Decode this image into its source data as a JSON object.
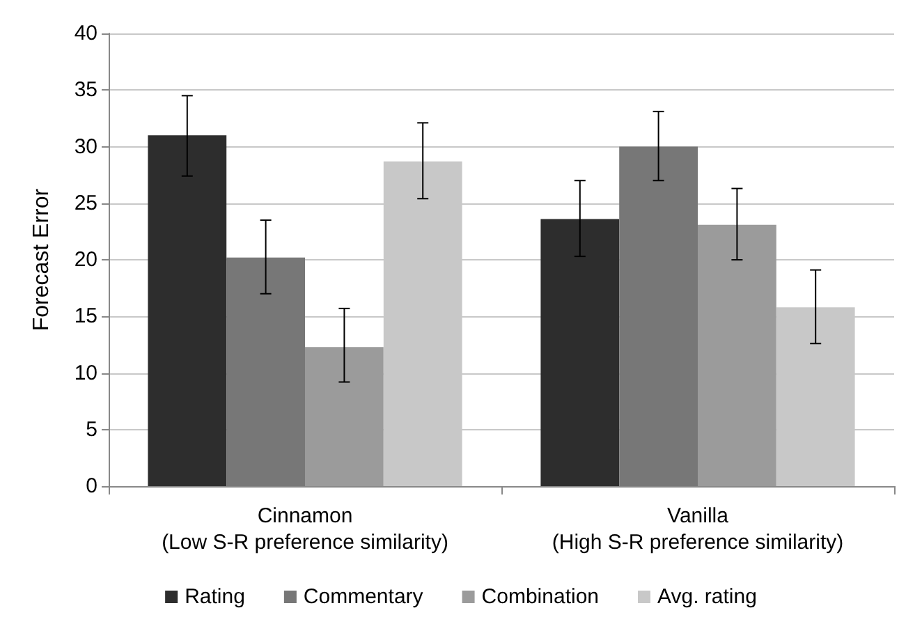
{
  "chart_data": {
    "type": "bar",
    "ylabel": "Forecast Error",
    "categories": [
      "Cinnamon\n(Low S-R preference similarity)",
      "Vanilla\n(High S-R preference similarity)"
    ],
    "series": [
      {
        "name": "Rating",
        "color": "#2d2d2d",
        "values": [
          31,
          23.6
        ],
        "errors": [
          [
            27.4,
            34.5
          ],
          [
            20.3,
            27
          ]
        ]
      },
      {
        "name": "Commentary",
        "color": "#777777",
        "values": [
          20.2,
          30
        ],
        "errors": [
          [
            17,
            23.5
          ],
          [
            27,
            33.1
          ]
        ]
      },
      {
        "name": "Combination",
        "color": "#9b9b9b",
        "values": [
          12.3,
          23.1
        ],
        "errors": [
          [
            9.2,
            15.7
          ],
          [
            20,
            26.3
          ]
        ]
      },
      {
        "name": "Avg. rating",
        "color": "#c8c8c8",
        "values": [
          28.7,
          15.8
        ],
        "errors": [
          [
            25.4,
            32.1
          ],
          [
            12.6,
            19.1
          ]
        ]
      }
    ],
    "ylim": [
      0,
      40
    ],
    "yticks": [
      0,
      5,
      10,
      15,
      20,
      25,
      30,
      35,
      40
    ],
    "grid": "y",
    "legend": "bottom"
  }
}
